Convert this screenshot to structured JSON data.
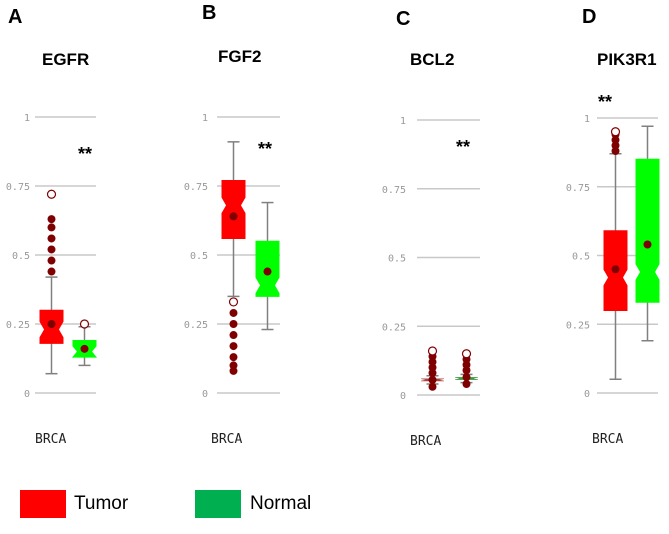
{
  "chart_data": [
    {
      "type": "box",
      "panel": "A",
      "title": "EGFR",
      "category": "BRCA",
      "significance": "**",
      "ylim": [
        0,
        1
      ],
      "yticks": [
        "0",
        "0.25",
        "0.5",
        "0.75",
        "1"
      ],
      "series": [
        {
          "name": "Tumor",
          "min": 0.07,
          "q1": 0.18,
          "median": 0.23,
          "q3": 0.3,
          "max": 0.42,
          "mean": 0.25,
          "outliers": [
            0.44,
            0.48,
            0.52,
            0.56,
            0.6,
            0.63,
            0.72
          ]
        },
        {
          "name": "Normal",
          "min": 0.1,
          "q1": 0.13,
          "median": 0.15,
          "q3": 0.19,
          "max": 0.24,
          "mean": 0.16,
          "outliers": [
            0.25
          ]
        }
      ]
    },
    {
      "type": "box",
      "panel": "B",
      "title": "FGF2",
      "category": "BRCA",
      "significance": "**",
      "ylim": [
        0,
        1
      ],
      "yticks": [
        "0",
        "0.25",
        "0.5",
        "0.75",
        "1"
      ],
      "series": [
        {
          "name": "Tumor",
          "min": 0.35,
          "q1": 0.56,
          "median": 0.68,
          "q3": 0.77,
          "max": 0.91,
          "mean": 0.64,
          "outliers": [
            0.08,
            0.1,
            0.13,
            0.17,
            0.21,
            0.25,
            0.29,
            0.33
          ]
        },
        {
          "name": "Normal",
          "min": 0.23,
          "q1": 0.35,
          "median": 0.39,
          "q3": 0.55,
          "max": 0.69,
          "mean": 0.44,
          "outliers": []
        }
      ]
    },
    {
      "type": "box",
      "panel": "C",
      "title": "BCL2",
      "category": "BRCA",
      "significance": "**",
      "ylim": [
        0,
        1
      ],
      "yticks": [
        "0",
        "0.25",
        "0.5",
        "0.75",
        "1"
      ],
      "series": [
        {
          "name": "Tumor",
          "min": 0.04,
          "q1": 0.05,
          "median": 0.055,
          "q3": 0.06,
          "max": 0.07,
          "mean": 0.055,
          "outliers": [
            0.03,
            0.08,
            0.1,
            0.12,
            0.14,
            0.16
          ]
        },
        {
          "name": "Normal",
          "min": 0.045,
          "q1": 0.055,
          "median": 0.06,
          "q3": 0.065,
          "max": 0.075,
          "mean": 0.065,
          "outliers": [
            0.04,
            0.09,
            0.11,
            0.13,
            0.15
          ]
        }
      ]
    },
    {
      "type": "box",
      "panel": "D",
      "title": "PIK3R1",
      "category": "BRCA",
      "significance": "**",
      "ylim": [
        0,
        1
      ],
      "yticks": [
        "0",
        "0.25",
        "0.5",
        "0.75",
        "1"
      ],
      "series": [
        {
          "name": "Tumor",
          "min": 0.05,
          "q1": 0.3,
          "median": 0.42,
          "q3": 0.59,
          "max": 0.87,
          "mean": 0.45,
          "outliers": [
            0.88,
            0.9,
            0.92,
            0.94,
            0.95
          ]
        },
        {
          "name": "Normal",
          "min": 0.19,
          "q1": 0.33,
          "median": 0.44,
          "q3": 0.85,
          "max": 0.97,
          "mean": 0.54,
          "outliers": []
        }
      ]
    }
  ],
  "legend": [
    {
      "label": "Tumor",
      "color": "#ff0000"
    },
    {
      "label": "Normal",
      "color": "#00b050"
    }
  ],
  "colors": {
    "tumor_box": "#ff0000",
    "normal_box": "#00ff00",
    "outlier": "#7f0000",
    "mean": "#7f0000",
    "grid": "#c8c8c8",
    "whisker": "#808080"
  }
}
